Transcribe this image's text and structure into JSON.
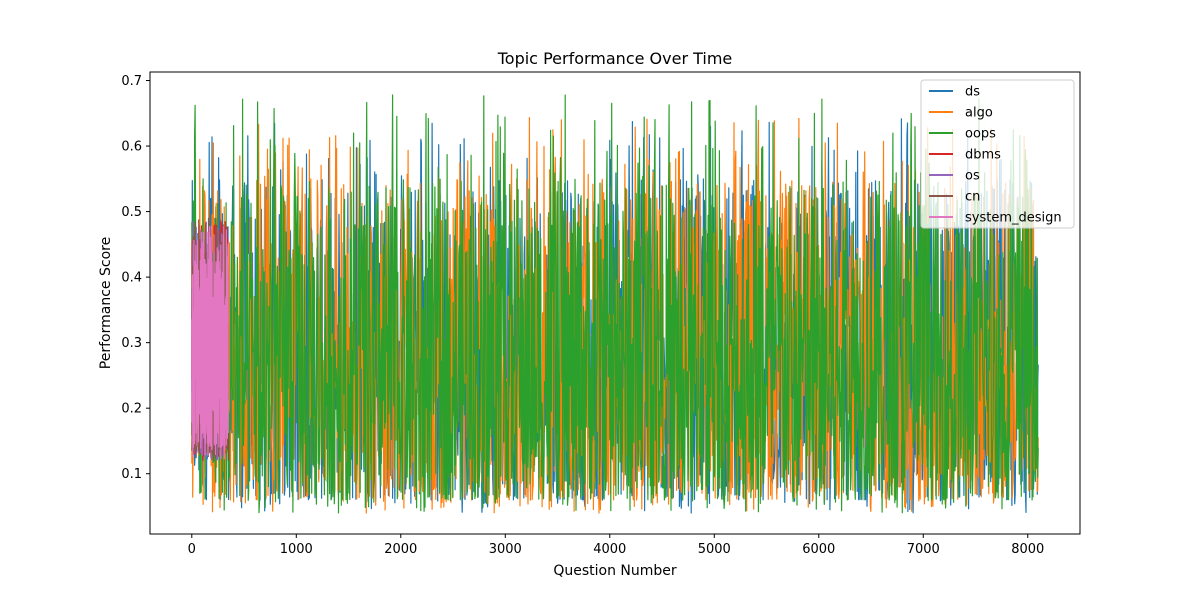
{
  "chart_data": {
    "type": "line",
    "title": "Topic Performance Over Time",
    "xlabel": "Question Number",
    "ylabel": "Performance Score",
    "xlim": [
      -400,
      8500
    ],
    "ylim": [
      0.008,
      0.713
    ],
    "xticks": [
      0,
      1000,
      2000,
      3000,
      4000,
      5000,
      6000,
      7000,
      8000
    ],
    "yticks": [
      0.1,
      0.2,
      0.3,
      0.4,
      0.5,
      0.6,
      0.7
    ],
    "xtick_labels": [
      "0",
      "1000",
      "2000",
      "3000",
      "4000",
      "5000",
      "6000",
      "7000",
      "8000"
    ],
    "ytick_labels": [
      "0.1",
      "0.2",
      "0.3",
      "0.4",
      "0.5",
      "0.6",
      "0.7"
    ],
    "grid": false,
    "legend_position": "upper-right",
    "series": [
      {
        "name": "ds",
        "color": "#1f77b4",
        "x_range": [
          0,
          8100
        ],
        "y_range": [
          0.04,
          0.65
        ],
        "y_typical": [
          0.06,
          0.55
        ]
      },
      {
        "name": "algo",
        "color": "#ff7f0e",
        "x_range": [
          0,
          8100
        ],
        "y_range": [
          0.04,
          0.645
        ],
        "y_typical": [
          0.06,
          0.55
        ]
      },
      {
        "name": "oops",
        "color": "#2ca02c",
        "x_range": [
          0,
          8100
        ],
        "y_range": [
          0.04,
          0.68
        ],
        "y_typical": [
          0.06,
          0.55
        ]
      },
      {
        "name": "dbms",
        "color": "#d62728",
        "x_range": [
          0,
          350
        ],
        "y_range": [
          0.12,
          0.49
        ],
        "y_typical": [
          0.13,
          0.47
        ]
      },
      {
        "name": "os",
        "color": "#9467bd",
        "x_range": [
          0,
          350
        ],
        "y_range": [
          0.12,
          0.49
        ],
        "y_typical": [
          0.13,
          0.47
        ]
      },
      {
        "name": "cn",
        "color": "#8c564b",
        "x_range": [
          0,
          350
        ],
        "y_range": [
          0.12,
          0.49
        ],
        "y_typical": [
          0.13,
          0.47
        ]
      },
      {
        "name": "system_design",
        "color": "#e377c2",
        "x_range": [
          0,
          350
        ],
        "y_range": [
          0.12,
          0.48
        ],
        "y_typical": [
          0.14,
          0.46
        ]
      }
    ]
  }
}
